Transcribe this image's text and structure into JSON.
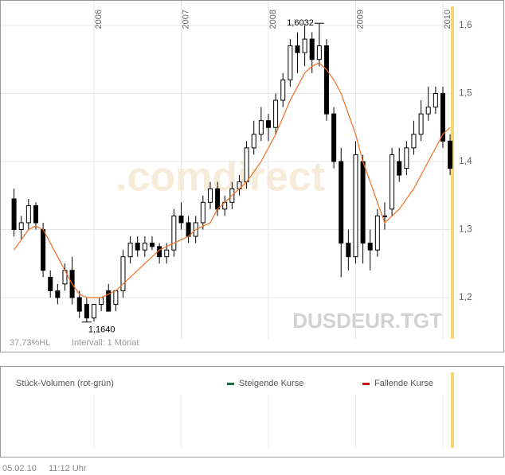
{
  "chart_data": {
    "type": "candlestick",
    "categories": [
      null,
      null,
      null,
      null,
      null,
      null,
      null,
      null,
      null,
      null,
      null,
      null,
      null,
      null,
      null,
      null,
      null,
      null,
      null,
      null,
      null,
      null,
      null,
      null,
      null,
      null,
      null,
      null,
      null,
      null,
      null,
      null,
      null,
      null,
      null,
      null,
      null,
      null,
      null,
      null,
      null,
      null,
      null,
      null,
      null,
      null,
      null,
      null,
      null,
      null,
      null,
      null,
      null,
      null,
      null,
      null,
      null,
      null,
      null,
      null,
      null
    ],
    "open": [
      1.345,
      1.3,
      1.31,
      1.335,
      1.3,
      1.23,
      1.21,
      1.22,
      1.24,
      1.2,
      1.19,
      1.17,
      1.19,
      1.21,
      1.19,
      1.21,
      1.26,
      1.28,
      1.27,
      1.28,
      1.275,
      1.26,
      1.27,
      1.32,
      1.31,
      1.29,
      1.31,
      1.34,
      1.36,
      1.33,
      1.34,
      1.36,
      1.37,
      1.42,
      1.44,
      1.46,
      1.45,
      1.49,
      1.52,
      1.57,
      1.56,
      1.58,
      1.55,
      1.57,
      1.47,
      1.4,
      1.28,
      1.26,
      1.4,
      1.28,
      1.27,
      1.32,
      1.33,
      1.4,
      1.39,
      1.42,
      1.44,
      1.47,
      1.48,
      1.5,
      1.43
    ],
    "high": [
      1.36,
      1.32,
      1.345,
      1.34,
      1.31,
      1.24,
      1.22,
      1.25,
      1.26,
      1.21,
      1.2,
      1.19,
      1.2,
      1.22,
      1.21,
      1.27,
      1.29,
      1.29,
      1.29,
      1.29,
      1.28,
      1.28,
      1.33,
      1.34,
      1.32,
      1.32,
      1.35,
      1.37,
      1.37,
      1.35,
      1.37,
      1.38,
      1.43,
      1.46,
      1.48,
      1.47,
      1.5,
      1.53,
      1.58,
      1.59,
      1.6,
      1.59,
      1.6032,
      1.58,
      1.48,
      1.42,
      1.3,
      1.43,
      1.41,
      1.3,
      1.33,
      1.34,
      1.42,
      1.42,
      1.43,
      1.46,
      1.49,
      1.51,
      1.51,
      1.51,
      1.44
    ],
    "low": [
      1.29,
      1.285,
      1.3,
      1.3,
      1.23,
      1.2,
      1.19,
      1.21,
      1.19,
      1.17,
      1.164,
      1.165,
      1.18,
      1.18,
      1.18,
      1.2,
      1.25,
      1.26,
      1.26,
      1.27,
      1.25,
      1.25,
      1.26,
      1.3,
      1.28,
      1.28,
      1.3,
      1.33,
      1.32,
      1.32,
      1.33,
      1.35,
      1.36,
      1.41,
      1.43,
      1.43,
      1.44,
      1.48,
      1.51,
      1.53,
      1.54,
      1.53,
      1.54,
      1.46,
      1.39,
      1.23,
      1.24,
      1.25,
      1.25,
      1.24,
      1.26,
      1.3,
      1.32,
      1.37,
      1.38,
      1.41,
      1.43,
      1.46,
      1.47,
      1.42,
      1.38
    ],
    "close": [
      1.3,
      1.31,
      1.335,
      1.31,
      1.24,
      1.21,
      1.2,
      1.24,
      1.2,
      1.18,
      1.17,
      1.19,
      1.2,
      1.18,
      1.21,
      1.26,
      1.28,
      1.27,
      1.28,
      1.275,
      1.26,
      1.27,
      1.32,
      1.31,
      1.29,
      1.31,
      1.34,
      1.36,
      1.33,
      1.34,
      1.36,
      1.37,
      1.42,
      1.44,
      1.46,
      1.45,
      1.49,
      1.52,
      1.57,
      1.56,
      1.58,
      1.55,
      1.57,
      1.47,
      1.4,
      1.28,
      1.26,
      1.41,
      1.28,
      1.27,
      1.32,
      1.32,
      1.41,
      1.38,
      1.42,
      1.44,
      1.47,
      1.48,
      1.5,
      1.43,
      1.39
    ],
    "up_color": "#ffffff",
    "down_color": "#000000",
    "average": {
      "color": "#f07020",
      "values": [
        1.27,
        1.285,
        1.3,
        1.305,
        1.3,
        1.28,
        1.26,
        1.24,
        1.22,
        1.205,
        1.2,
        1.2,
        1.2,
        1.205,
        1.21,
        1.22,
        1.23,
        1.24,
        1.25,
        1.26,
        1.27,
        1.275,
        1.28,
        1.285,
        1.29,
        1.3,
        1.305,
        1.31,
        1.33,
        1.34,
        1.35,
        1.36,
        1.37,
        1.385,
        1.4,
        1.42,
        1.44,
        1.465,
        1.49,
        1.51,
        1.53,
        1.54,
        1.545,
        1.535,
        1.52,
        1.5,
        1.47,
        1.44,
        1.4,
        1.37,
        1.34,
        1.31,
        1.32,
        1.33,
        1.345,
        1.36,
        1.38,
        1.4,
        1.42,
        1.44,
        1.45
      ]
    },
    "annotations": [
      {
        "label": "1,6032",
        "value": 1.6032
      },
      {
        "label": "1,1640",
        "value": 1.164
      }
    ],
    "ylim": [
      1.1193,
      1.6374
    ],
    "yticks": [
      {
        "value": 1.2,
        "label": "1,2"
      },
      {
        "value": 1.3,
        "label": "1,3"
      },
      {
        "value": 1.4,
        "label": "1,4"
      },
      {
        "value": 1.5,
        "label": "1,5"
      },
      {
        "value": 1.6,
        "label": "1,6"
      }
    ],
    "xticks": [
      {
        "value": 11,
        "label": "2006"
      },
      {
        "value": 23,
        "label": "2007"
      },
      {
        "value": 35,
        "label": "2008"
      },
      {
        "value": 47,
        "label": "2009"
      },
      {
        "value": 59,
        "label": "2010"
      }
    ],
    "grid": true,
    "symbol": "DUSDEUR.TGT",
    "watermark": ".comdirect",
    "range_info": "37,73%HL",
    "interval": "Intervall: 1 Monat"
  },
  "volume_panel": {
    "title": "Stück-Volumen (rot-grün)",
    "legend": [
      {
        "name": "Steigende Kurse",
        "color": "#11733b"
      },
      {
        "name": "Fallende Kurse",
        "color": "#cc1111"
      }
    ]
  },
  "footer": {
    "date": "05.02.10",
    "time": "11:12 Uhr"
  }
}
